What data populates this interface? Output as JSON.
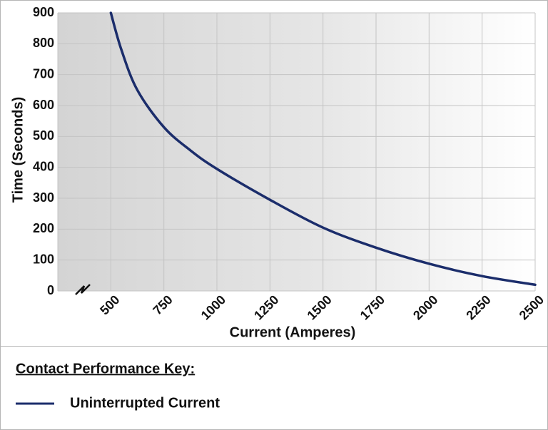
{
  "chart_data": {
    "type": "line",
    "x_label": "Current (Amperes)",
    "y_label": "Time (Seconds)",
    "x": [
      500,
      550,
      625,
      750,
      875,
      1000,
      1250,
      1500,
      1750,
      2000,
      2250,
      2500
    ],
    "series": [
      {
        "name": "Uninterrupted Current",
        "color": "#1b2d6b",
        "values": [
          900,
          780,
          650,
          530,
          455,
          395,
          295,
          205,
          140,
          88,
          48,
          20
        ]
      }
    ],
    "xlim": [
      250,
      2500
    ],
    "xticks": [
      500,
      750,
      1000,
      1250,
      1500,
      1750,
      2000,
      2250,
      2500
    ],
    "ylim": [
      0,
      900
    ],
    "yticks": [
      0,
      100,
      200,
      300,
      400,
      500,
      600,
      700,
      800,
      900
    ],
    "grid": true,
    "legend_title": "Contact Performance Key:"
  }
}
